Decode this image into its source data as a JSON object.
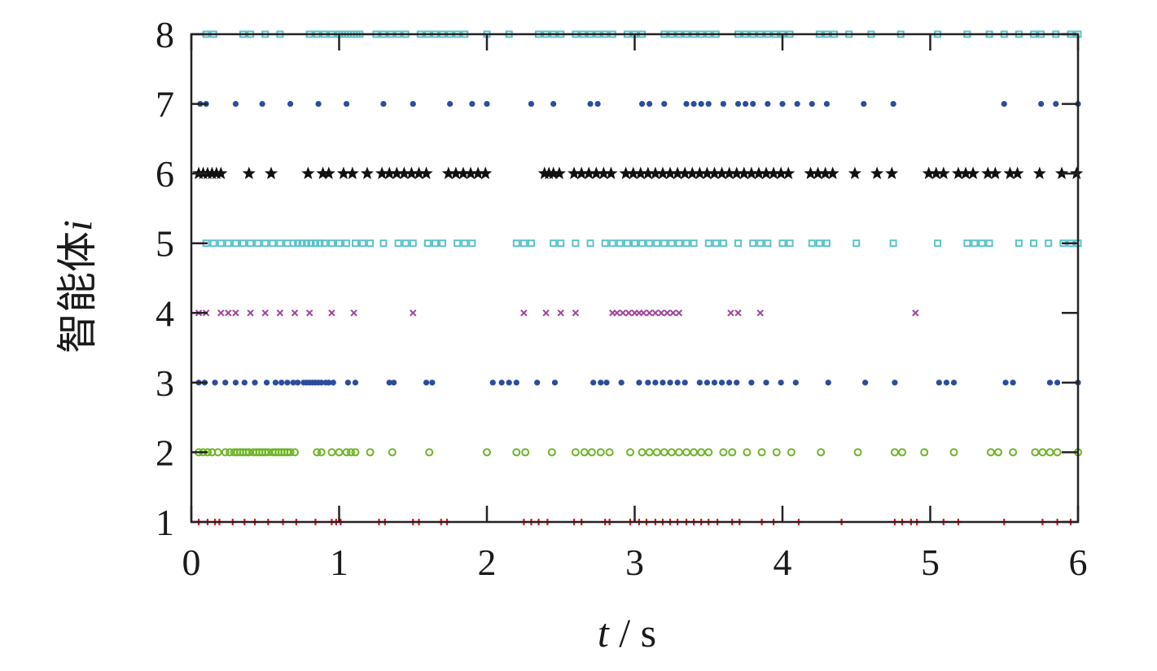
{
  "chart_data": {
    "type": "scatter",
    "xlabel_var": "t",
    "xlabel_sep": " / ",
    "xlabel_unit": "s",
    "ylabel_text": "智能体",
    "ylabel_var": "i",
    "xlim": [
      0,
      6
    ],
    "ylim": [
      1,
      8
    ],
    "xticks": [
      0,
      1,
      2,
      3,
      4,
      5,
      6
    ],
    "yticks": [
      1,
      2,
      3,
      4,
      5,
      6,
      7,
      8
    ],
    "grid": false,
    "series": [
      {
        "agent": 1,
        "marker": "plus",
        "color": "#e0161e",
        "x": [
          0.05,
          0.11,
          0.16,
          0.19,
          0.28,
          0.36,
          0.43,
          0.52,
          0.62,
          0.71,
          0.84,
          0.95,
          0.98,
          1.01,
          1.27,
          1.31,
          1.5,
          1.54,
          1.69,
          1.73,
          2.25,
          2.3,
          2.35,
          2.41,
          2.59,
          2.64,
          2.8,
          2.83,
          2.97,
          3.03,
          3.08,
          3.14,
          3.19,
          3.24,
          3.29,
          3.35,
          3.4,
          3.45,
          3.5,
          3.56,
          3.66,
          3.71,
          3.86,
          3.94,
          4.11,
          4.4,
          4.76,
          4.81,
          4.87,
          4.91,
          5.09,
          5.19,
          5.5,
          5.76,
          5.86,
          5.95
        ]
      },
      {
        "agent": 2,
        "marker": "open-circle",
        "color": "#6fb428",
        "x": [
          0.05,
          0.08,
          0.11,
          0.14,
          0.18,
          0.23,
          0.26,
          0.29,
          0.31,
          0.33,
          0.35,
          0.37,
          0.39,
          0.42,
          0.44,
          0.46,
          0.48,
          0.5,
          0.52,
          0.55,
          0.57,
          0.59,
          0.61,
          0.63,
          0.65,
          0.67,
          0.7,
          0.85,
          0.88,
          0.95,
          1.0,
          1.05,
          1.08,
          1.11,
          1.21,
          1.36,
          1.61,
          2.0,
          2.2,
          2.26,
          2.44,
          2.6,
          2.66,
          2.71,
          2.77,
          2.83,
          2.97,
          3.05,
          3.1,
          3.15,
          3.2,
          3.25,
          3.3,
          3.35,
          3.4,
          3.45,
          3.5,
          3.6,
          3.66,
          3.76,
          3.86,
          3.96,
          4.06,
          4.26,
          4.51,
          4.76,
          4.81,
          4.96,
          5.16,
          5.41,
          5.46,
          5.56,
          5.71,
          5.76,
          5.81,
          5.86,
          6.0
        ]
      },
      {
        "agent": 3,
        "marker": "dot",
        "color": "#2b4d9c",
        "x": [
          0.05,
          0.09,
          0.16,
          0.23,
          0.3,
          0.36,
          0.43,
          0.51,
          0.57,
          0.61,
          0.65,
          0.69,
          0.72,
          0.76,
          0.78,
          0.8,
          0.82,
          0.84,
          0.86,
          0.88,
          0.91,
          0.93,
          0.96,
          1.06,
          1.11,
          1.34,
          1.37,
          1.59,
          1.63,
          2.04,
          2.1,
          2.15,
          2.2,
          2.34,
          2.46,
          2.72,
          2.77,
          2.81,
          2.91,
          3.03,
          3.09,
          3.14,
          3.19,
          3.24,
          3.29,
          3.34,
          3.44,
          3.49,
          3.54,
          3.59,
          3.64,
          3.69,
          3.79,
          3.89,
          3.99,
          4.09,
          4.31,
          4.56,
          4.76,
          5.06,
          5.11,
          5.16,
          5.51,
          5.56,
          5.81,
          5.86,
          6.0
        ]
      },
      {
        "agent": 4,
        "marker": "cross",
        "color": "#a0459a",
        "x": [
          0.05,
          0.1,
          0.2,
          0.25,
          0.3,
          0.4,
          0.5,
          0.6,
          0.7,
          0.8,
          0.95,
          1.1,
          1.5,
          2.25,
          2.4,
          2.5,
          2.6,
          2.85,
          2.88,
          2.92,
          2.96,
          3.0,
          3.03,
          3.06,
          3.1,
          3.14,
          3.18,
          3.22,
          3.26,
          3.3,
          3.65,
          3.7,
          3.85,
          4.9
        ]
      },
      {
        "agent": 5,
        "marker": "open-square",
        "color": "#5bc2c9",
        "x": [
          0.1,
          0.15,
          0.2,
          0.25,
          0.3,
          0.35,
          0.4,
          0.45,
          0.5,
          0.55,
          0.6,
          0.65,
          0.69,
          0.72,
          0.75,
          0.78,
          0.81,
          0.84,
          0.87,
          0.9,
          0.95,
          1.0,
          1.05,
          1.11,
          1.16,
          1.21,
          1.3,
          1.4,
          1.45,
          1.5,
          1.6,
          1.65,
          1.7,
          1.8,
          1.85,
          1.9,
          2.2,
          2.25,
          2.3,
          2.45,
          2.5,
          2.6,
          2.7,
          2.8,
          2.85,
          2.9,
          2.95,
          3.0,
          3.05,
          3.1,
          3.15,
          3.2,
          3.25,
          3.3,
          3.35,
          3.4,
          3.5,
          3.55,
          3.6,
          3.7,
          3.8,
          3.85,
          3.9,
          4.0,
          4.05,
          4.2,
          4.25,
          4.3,
          4.5,
          4.75,
          5.05,
          5.25,
          5.3,
          5.35,
          5.4,
          5.6,
          5.7,
          5.8,
          5.9,
          5.95,
          6.0
        ]
      },
      {
        "agent": 6,
        "marker": "star",
        "color": "#111111",
        "x": [
          0.05,
          0.08,
          0.11,
          0.14,
          0.17,
          0.2,
          0.39,
          0.54,
          0.79,
          0.89,
          0.93,
          1.03,
          1.09,
          1.19,
          1.29,
          1.34,
          1.39,
          1.44,
          1.49,
          1.54,
          1.59,
          1.74,
          1.79,
          1.84,
          1.89,
          1.94,
          1.99,
          2.39,
          2.42,
          2.45,
          2.49,
          2.59,
          2.64,
          2.69,
          2.74,
          2.79,
          2.84,
          2.94,
          2.99,
          3.04,
          3.09,
          3.14,
          3.19,
          3.24,
          3.29,
          3.34,
          3.39,
          3.44,
          3.49,
          3.54,
          3.59,
          3.64,
          3.69,
          3.74,
          3.79,
          3.84,
          3.89,
          3.94,
          3.99,
          4.04,
          4.19,
          4.24,
          4.29,
          4.34,
          4.49,
          4.64,
          4.74,
          4.99,
          5.04,
          5.09,
          5.19,
          5.24,
          5.29,
          5.39,
          5.44,
          5.54,
          5.59,
          5.74,
          5.89,
          5.99
        ]
      },
      {
        "agent": 7,
        "marker": "dot",
        "color": "#2b4d9c",
        "x": [
          0.06,
          0.1,
          0.3,
          0.48,
          0.67,
          0.86,
          1.05,
          1.3,
          1.5,
          1.75,
          1.9,
          2.0,
          2.3,
          2.45,
          2.7,
          2.75,
          3.05,
          3.1,
          3.2,
          3.35,
          3.4,
          3.45,
          3.5,
          3.6,
          3.7,
          3.75,
          3.8,
          3.9,
          4.0,
          4.1,
          4.2,
          4.3,
          4.55,
          4.75,
          5.5,
          5.75,
          5.85,
          6.0
        ]
      },
      {
        "agent": 8,
        "marker": "open-square",
        "color": "#5bc2c9",
        "x": [
          0.1,
          0.15,
          0.35,
          0.4,
          0.5,
          0.6,
          0.8,
          0.85,
          0.9,
          0.95,
          1.0,
          1.02,
          1.04,
          1.06,
          1.08,
          1.1,
          1.12,
          1.14,
          1.25,
          1.3,
          1.35,
          1.4,
          1.45,
          1.55,
          1.6,
          1.65,
          1.7,
          1.75,
          1.8,
          1.85,
          2.0,
          2.15,
          2.35,
          2.4,
          2.45,
          2.5,
          2.6,
          2.65,
          2.7,
          2.75,
          2.8,
          2.85,
          2.95,
          3.0,
          3.05,
          3.2,
          3.25,
          3.3,
          3.35,
          3.4,
          3.45,
          3.5,
          3.55,
          3.7,
          3.75,
          3.8,
          3.85,
          3.9,
          3.95,
          4.0,
          4.05,
          4.25,
          4.3,
          4.35,
          4.45,
          4.6,
          4.8,
          5.05,
          5.25,
          5.4,
          5.5,
          5.6,
          5.7,
          5.75,
          5.85,
          5.95,
          6.0
        ]
      }
    ]
  }
}
